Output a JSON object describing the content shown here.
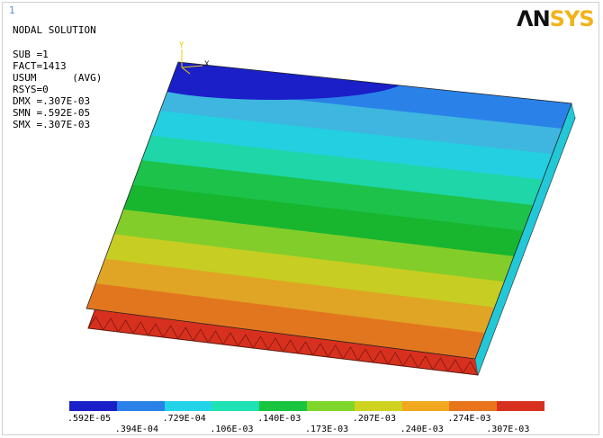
{
  "window_number": "1",
  "logo": {
    "part1": "ΛN",
    "part2": "SYS"
  },
  "info": {
    "title": "NODAL SOLUTION",
    "sub": "SUB =1",
    "fact": "FACT=1413",
    "usum": "USUM      (AVG)",
    "rsys": "RSYS=0",
    "dmx": "DMX =.307E-03",
    "smn": "SMN =.592E-05",
    "smx": "SMX =.307E-03"
  },
  "axes": {
    "y": "Y",
    "x": "X"
  },
  "legend": {
    "colors": [
      "#1a1fc8",
      "#2a82e8",
      "#23d4e8",
      "#1ee2b4",
      "#19c43e",
      "#7fd62a",
      "#cfd21f",
      "#f0a81e",
      "#e8741c",
      "#d8301e"
    ],
    "labels_top": [
      ".592E-05",
      ".729E-04",
      ".140E-03",
      ".207E-03",
      ".274E-03"
    ],
    "labels_bottom": [
      ".394E-04",
      ".106E-03",
      ".173E-03",
      ".240E-03",
      ".307E-03"
    ]
  },
  "contour": {
    "band_colors": [
      "#2a82e8",
      "#3eb6e0",
      "#23cfe0",
      "#1fd6a8",
      "#1cc24a",
      "#18b62e",
      "#83cd2a",
      "#c7cd22",
      "#e0a524",
      "#e2761f"
    ],
    "min_spot_color": "#1a1fc8",
    "edge_color": "#d8301e"
  }
}
